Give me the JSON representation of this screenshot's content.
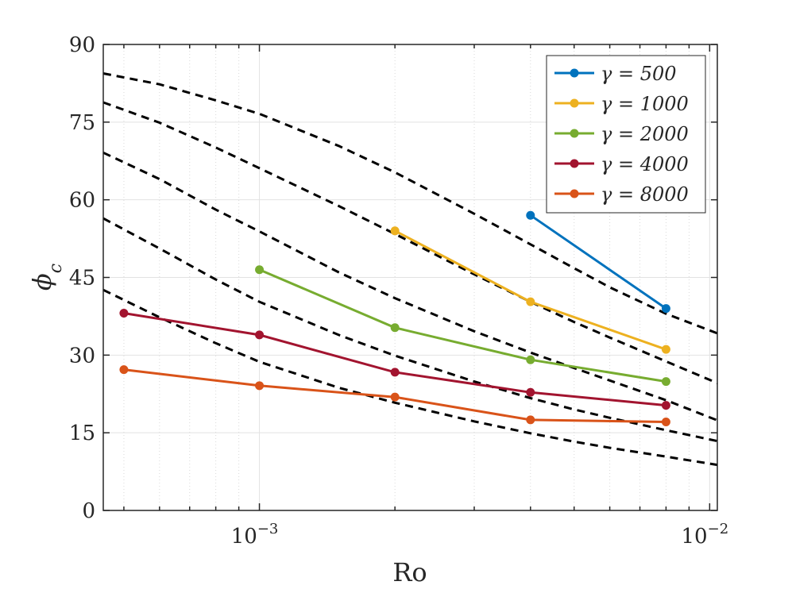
{
  "chart_data": {
    "type": "line",
    "title": "",
    "xlabel": "Ro",
    "ylabel": "ϕ",
    "ylabel_sub": "c",
    "xscale": "log",
    "xlim": [
      0.00045,
      0.0104
    ],
    "ylim": [
      0,
      90
    ],
    "grid": true,
    "legend_position": "top-right",
    "y_ticks": [
      0,
      15,
      30,
      45,
      60,
      75,
      90
    ],
    "y_tick_labels": [
      "0",
      "15",
      "30",
      "45",
      "60",
      "75",
      "90"
    ],
    "x_ticks": [
      0.001,
      0.01
    ],
    "x_tick_labels": [
      {
        "base": "10",
        "exp": "−3"
      },
      {
        "base": "10",
        "exp": "−2"
      }
    ],
    "series": [
      {
        "name": "γ = 500",
        "color": "#0072BD",
        "x": [
          0.004,
          0.008
        ],
        "y": [
          57,
          39
        ]
      },
      {
        "name": "γ = 1000",
        "color": "#EDB120",
        "x": [
          0.002,
          0.004,
          0.008
        ],
        "y": [
          54,
          40.3,
          31.1
        ]
      },
      {
        "name": "γ = 2000",
        "color": "#77AC30",
        "x": [
          0.001,
          0.002,
          0.004,
          0.008
        ],
        "y": [
          46.5,
          35.3,
          29.1,
          24.9
        ]
      },
      {
        "name": "γ = 4000",
        "color": "#A2142F",
        "x": [
          0.0005,
          0.001,
          0.002,
          0.004,
          0.008
        ],
        "y": [
          38.1,
          33.9,
          26.7,
          22.8,
          20.3
        ]
      },
      {
        "name": "γ = 8000",
        "color": "#D95319",
        "x": [
          0.0005,
          0.001,
          0.002,
          0.004,
          0.008
        ],
        "y": [
          27.2,
          24.1,
          21.9,
          17.5,
          17.1
        ]
      }
    ],
    "reference_curves": [
      {
        "name": "dashed-curve-1",
        "color": "#000000",
        "x": [
          0.00045,
          0.0006,
          0.0008,
          0.001,
          0.0015,
          0.002,
          0.003,
          0.004,
          0.005,
          0.006,
          0.008,
          0.0104
        ],
        "y": [
          84.4,
          82.3,
          79.2,
          76.6,
          70.4,
          65.3,
          57.3,
          51.4,
          46.8,
          43.1,
          38.0,
          34.2
        ]
      },
      {
        "name": "dashed-curve-2",
        "color": "#000000",
        "x": [
          0.00045,
          0.0006,
          0.0008,
          0.001,
          0.0015,
          0.002,
          0.003,
          0.004,
          0.005,
          0.006,
          0.008,
          0.0104
        ],
        "y": [
          78.8,
          74.9,
          70.1,
          66.1,
          58.8,
          53.4,
          45.6,
          40.3,
          36.4,
          33.4,
          28.8,
          24.6
        ]
      },
      {
        "name": "dashed-curve-3",
        "color": "#000000",
        "x": [
          0.00045,
          0.0006,
          0.0008,
          0.001,
          0.0015,
          0.002,
          0.003,
          0.004,
          0.005,
          0.006,
          0.008,
          0.0104
        ],
        "y": [
          69.1,
          64.0,
          58.1,
          53.9,
          46.0,
          41.0,
          34.6,
          30.5,
          27.5,
          25.1,
          21.3,
          17.4
        ]
      },
      {
        "name": "dashed-curve-4",
        "color": "#000000",
        "x": [
          0.00045,
          0.0006,
          0.0008,
          0.001,
          0.0015,
          0.002,
          0.003,
          0.004,
          0.005,
          0.006,
          0.008,
          0.0104
        ],
        "y": [
          56.4,
          50.6,
          44.6,
          40.3,
          33.9,
          29.9,
          24.9,
          21.7,
          19.5,
          17.9,
          15.5,
          13.4
        ]
      },
      {
        "name": "dashed-curve-5",
        "color": "#000000",
        "x": [
          0.00045,
          0.0006,
          0.0008,
          0.001,
          0.0015,
          0.002,
          0.003,
          0.004,
          0.005,
          0.006,
          0.008,
          0.0104
        ],
        "y": [
          42.6,
          37.3,
          32.3,
          28.7,
          23.7,
          20.8,
          17.2,
          14.9,
          13.3,
          12.1,
          10.4,
          8.8
        ]
      }
    ]
  }
}
